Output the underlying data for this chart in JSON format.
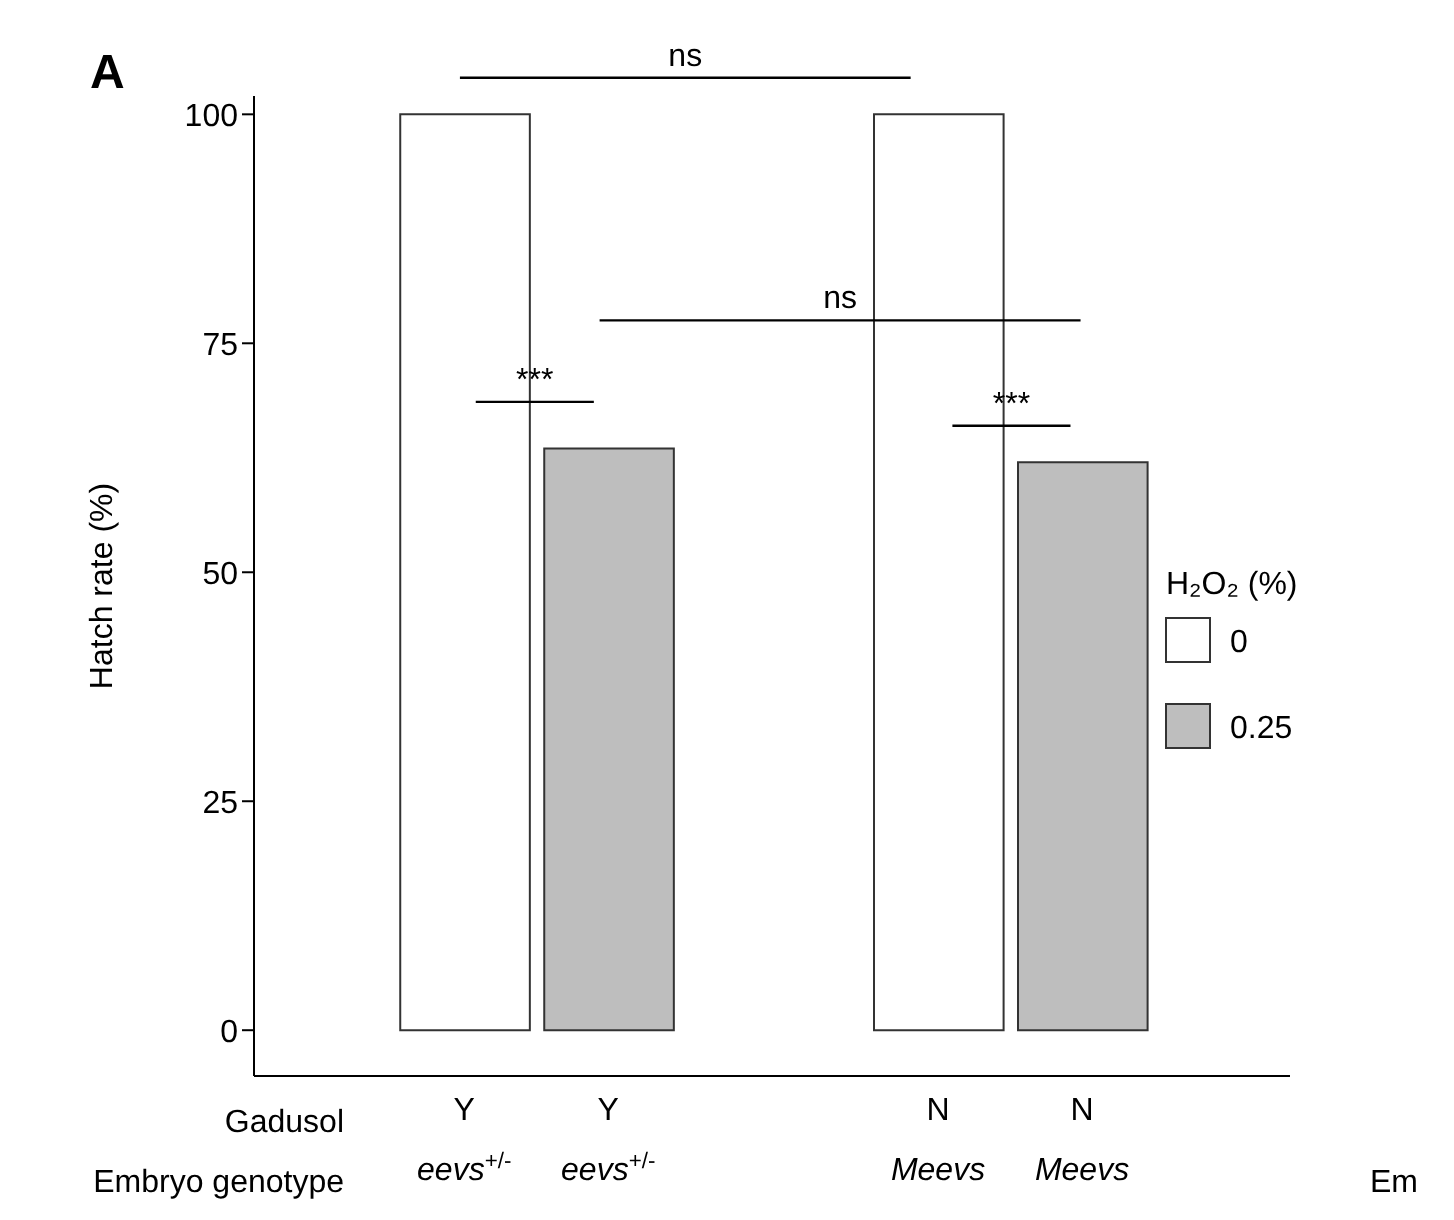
{
  "chart_data": {
    "type": "bar",
    "title": "A",
    "ylabel": "Hatch rate (%)",
    "legend_title": "H₂O₂ (%)",
    "legend": "right",
    "categories": [
      "Y\neevs$^{+/-}$",
      "Y\neevs$^{+/-}$",
      "N\nMeevs",
      "N\nMeevs"
    ],
    "series": [
      {
        "name": "0",
        "color": "#ffffff",
        "values": [
          100,
          null,
          100,
          null
        ]
      },
      {
        "name": "0.25",
        "color": "#bebebe",
        "values": [
          null,
          63.5,
          null,
          62
        ]
      }
    ],
    "ylim": [
      -5,
      102
    ],
    "yticks": [
      0,
      25,
      50,
      75,
      100
    ],
    "annotations": [
      "ns",
      "ns",
      "***",
      "***",
      "Gadusol",
      "Embryo genotype",
      "Em"
    ]
  }
}
